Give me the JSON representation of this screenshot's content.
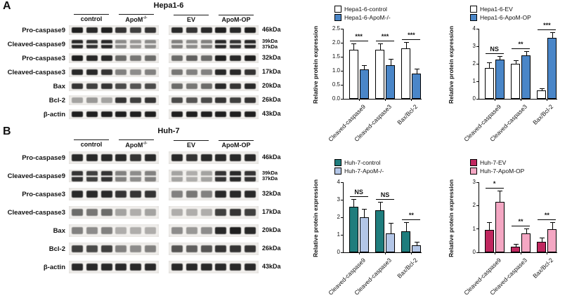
{
  "figure": {
    "panels": [
      {
        "tag": "A",
        "title": "Hepa1-6",
        "groups": [
          {
            "text": "control",
            "sup": ""
          },
          {
            "text": "ApoM",
            "sup": "-/-"
          },
          {
            "text": "EV",
            "sup": ""
          },
          {
            "text": "ApoM-OP",
            "sup": ""
          }
        ],
        "rows": [
          {
            "label": "Pro-caspase9",
            "kda": [
              "46kDa"
            ],
            "strips": [
              [
                0.95,
                0.9,
                0.95,
                0.85,
                0.8,
                0.85
              ],
              [
                0.9,
                0.85,
                0.9,
                0.95,
                0.9,
                0.95
              ]
            ]
          },
          {
            "label": "Cleaved-caspase9",
            "kda": [
              "39kDa",
              "37kDa"
            ],
            "strips": [
              [
                0.9,
                0.85,
                0.9,
                0.45,
                0.4,
                0.45
              ],
              [
                0.5,
                0.45,
                0.5,
                0.9,
                0.85,
                0.9
              ]
            ]
          },
          {
            "label": "Pro-caspase3",
            "kda": [
              "32kDa"
            ],
            "strips": [
              [
                0.95,
                0.9,
                0.9,
                0.6,
                0.55,
                0.6
              ],
              [
                0.6,
                0.65,
                0.6,
                0.95,
                0.9,
                0.95
              ]
            ]
          },
          {
            "label": "Cleaved-caspase3",
            "kda": [
              "17kDa"
            ],
            "strips": [
              [
                0.9,
                0.9,
                0.85,
                0.5,
                0.45,
                0.5
              ],
              [
                0.55,
                0.5,
                0.5,
                0.9,
                0.9,
                0.85
              ]
            ]
          },
          {
            "label": "Bax",
            "kda": [
              "20kDa"
            ],
            "strips": [
              [
                0.85,
                0.8,
                0.85,
                0.75,
                0.7,
                0.75
              ],
              [
                0.6,
                0.55,
                0.6,
                0.9,
                0.85,
                0.9
              ]
            ]
          },
          {
            "label": "Bcl-2",
            "kda": [
              "26kDa"
            ],
            "strips": [
              [
                0.35,
                0.4,
                0.35,
                0.85,
                0.8,
                0.85
              ],
              [
                0.75,
                0.7,
                0.75,
                0.85,
                0.8,
                0.85
              ]
            ]
          },
          {
            "label": "β-actin",
            "kda": [
              "43kDa"
            ],
            "strips": [
              [
                0.95,
                0.95,
                0.95,
                0.95,
                0.95,
                0.95
              ],
              [
                0.95,
                0.95,
                0.95,
                0.95,
                0.95,
                0.95
              ]
            ]
          }
        ]
      },
      {
        "tag": "B",
        "title": "Huh-7",
        "groups": [
          {
            "text": "control",
            "sup": ""
          },
          {
            "text": "ApoM",
            "sup": "-/-"
          },
          {
            "text": "EV",
            "sup": ""
          },
          {
            "text": "ApoM-OP",
            "sup": ""
          }
        ],
        "rows": [
          {
            "label": "Pro-caspase9",
            "kda": [
              "46kDa"
            ],
            "strips": [
              [
                0.9,
                0.9,
                0.9,
                0.9,
                0.85,
                0.9
              ],
              [
                0.9,
                0.85,
                0.9,
                0.9,
                0.9,
                0.9
              ]
            ]
          },
          {
            "label": "Cleaved-caspase9",
            "kda": [
              "39kDa",
              "37kDa"
            ],
            "strips": [
              [
                0.85,
                0.8,
                0.85,
                0.5,
                0.45,
                0.5
              ],
              [
                0.35,
                0.3,
                0.35,
                0.85,
                0.9,
                0.85
              ]
            ]
          },
          {
            "label": "Pro-caspase3",
            "kda": [
              "32kDa"
            ],
            "strips": [
              [
                0.9,
                0.9,
                0.9,
                0.85,
                0.85,
                0.85
              ],
              [
                0.5,
                0.55,
                0.5,
                0.9,
                0.9,
                0.9
              ]
            ]
          },
          {
            "label": "Cleaved-caspase3",
            "kda": [
              "17kDa"
            ],
            "strips": [
              [
                0.6,
                0.55,
                0.6,
                0.35,
                0.3,
                0.35
              ],
              [
                0.3,
                0.3,
                0.3,
                0.8,
                0.85,
                0.8
              ]
            ]
          },
          {
            "label": "Bax",
            "kda": [
              "20kDa"
            ],
            "strips": [
              [
                0.5,
                0.45,
                0.5,
                0.3,
                0.3,
                0.3
              ],
              [
                0.45,
                0.4,
                0.45,
                0.9,
                0.95,
                0.9
              ]
            ]
          },
          {
            "label": "Bcl-2",
            "kda": [
              "26kDa"
            ],
            "strips": [
              [
                0.8,
                0.75,
                0.8,
                0.5,
                0.45,
                0.5
              ],
              [
                0.7,
                0.65,
                0.7,
                0.85,
                0.85,
                0.85
              ]
            ]
          },
          {
            "label": "β-actin",
            "kda": [
              "43kDa"
            ],
            "strips": [
              [
                0.9,
                0.9,
                0.9,
                0.9,
                0.9,
                0.9
              ],
              [
                0.9,
                0.9,
                0.9,
                0.9,
                0.9,
                0.9
              ]
            ]
          }
        ]
      }
    ]
  },
  "chart_data": [
    {
      "type": "bar",
      "categories": [
        "Cleaved-caspase9",
        "Cleaved-caspase3",
        "Bax/Bcl-2"
      ],
      "series": [
        {
          "name": "Hepa1-6-control",
          "color": "#ffffff",
          "values": [
            1.75,
            1.75,
            1.8
          ],
          "errors": [
            0.2,
            0.2,
            0.2
          ]
        },
        {
          "name": "Hepa1-6-ApoM-/-",
          "color": "#4a86c8",
          "values": [
            1.05,
            1.2,
            0.9
          ],
          "errors": [
            0.12,
            0.2,
            0.15
          ]
        }
      ],
      "significance": [
        "***",
        "***",
        "***"
      ],
      "ylabel": "Relative protein expression",
      "ylim": [
        0,
        2.5
      ],
      "yticks": [
        "0.0",
        "0.5",
        "1.0",
        "1.5",
        "2.0",
        "2.5"
      ],
      "grid": false,
      "legend_position": "top"
    },
    {
      "type": "bar",
      "categories": [
        "Cleaved-caspase9",
        "Cleaved-caspase3",
        "Bax/Bcl-2"
      ],
      "series": [
        {
          "name": "Hepa1-6-EV",
          "color": "#ffffff",
          "values": [
            1.75,
            2.0,
            0.5
          ],
          "errors": [
            0.3,
            0.15,
            0.08
          ]
        },
        {
          "name": "Hepa1-6-ApoM-OP",
          "color": "#4a86c8",
          "values": [
            2.25,
            2.5,
            3.5
          ],
          "errors": [
            0.15,
            0.2,
            0.25
          ]
        }
      ],
      "significance": [
        "NS",
        "**",
        "***"
      ],
      "ylabel": "Relative protein expression",
      "ylim": [
        0,
        4
      ],
      "yticks": [
        "0",
        "1",
        "2",
        "3",
        "4"
      ],
      "grid": false,
      "legend_position": "top"
    },
    {
      "type": "bar",
      "categories": [
        "Cleaved-caspase9",
        "Cleaved-caspase3",
        "Bax/Bcl-2"
      ],
      "series": [
        {
          "name": "Huh-7-control",
          "color": "#1f7d7d",
          "values": [
            2.6,
            2.4,
            1.2
          ],
          "errors": [
            0.4,
            0.45,
            0.5
          ]
        },
        {
          "name": "Huh-7-ApoM-/-",
          "color": "#b3c6e7",
          "values": [
            2.0,
            1.1,
            0.4
          ],
          "errors": [
            0.45,
            0.55,
            0.15
          ]
        }
      ],
      "significance": [
        "NS",
        "NS",
        "**"
      ],
      "ylabel": "Relative protein expression",
      "ylim": [
        0,
        4
      ],
      "yticks": [
        "0",
        "1",
        "2",
        "3",
        "4"
      ],
      "grid": false,
      "legend_position": "top"
    },
    {
      "type": "bar",
      "categories": [
        "Cleaved-caspase9",
        "Cleaved-caspase3",
        "Bax/Bcl-2"
      ],
      "series": [
        {
          "name": "Huh-7-EV",
          "color": "#c0275f",
          "values": [
            0.95,
            0.25,
            0.45
          ],
          "errors": [
            0.3,
            0.08,
            0.15
          ]
        },
        {
          "name": "Huh-7-ApoM-OP",
          "color": "#f4a7c3",
          "values": [
            2.15,
            0.8,
            1.0
          ],
          "errors": [
            0.45,
            0.2,
            0.25
          ]
        }
      ],
      "significance": [
        "*",
        "**",
        "**"
      ],
      "ylabel": "Relative protein expression",
      "ylim": [
        0,
        3
      ],
      "yticks": [
        "0",
        "1",
        "2",
        "3"
      ],
      "grid": false,
      "legend_position": "top"
    }
  ]
}
